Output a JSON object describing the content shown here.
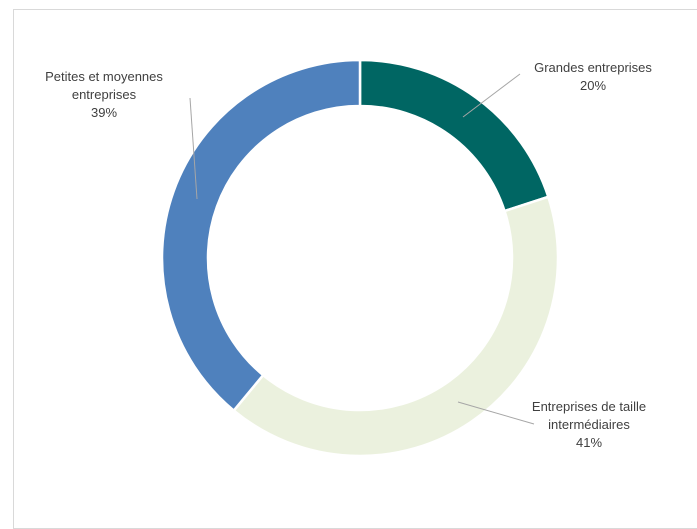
{
  "chart_data": {
    "type": "pie",
    "variant": "donut",
    "slices": [
      {
        "label_lines": [
          "Grandes entreprises"
        ],
        "label": "Grandes entreprises",
        "value": 20,
        "value_text": "20%",
        "color": "#006663"
      },
      {
        "label_lines": [
          "Entreprises de taille",
          "intermédiaires"
        ],
        "label": "Entreprises de taille intermédiaires",
        "value": 41,
        "value_text": "41%",
        "color": "#ebf1de"
      },
      {
        "label_lines": [
          "Petites et moyennes",
          "entreprises"
        ],
        "label": "Petites et moyennes entreprises",
        "value": 39,
        "value_text": "39%",
        "color": "#4f81bd"
      }
    ],
    "title": "",
    "legend": "none",
    "label_placement": "outside-with-leader-lines"
  }
}
